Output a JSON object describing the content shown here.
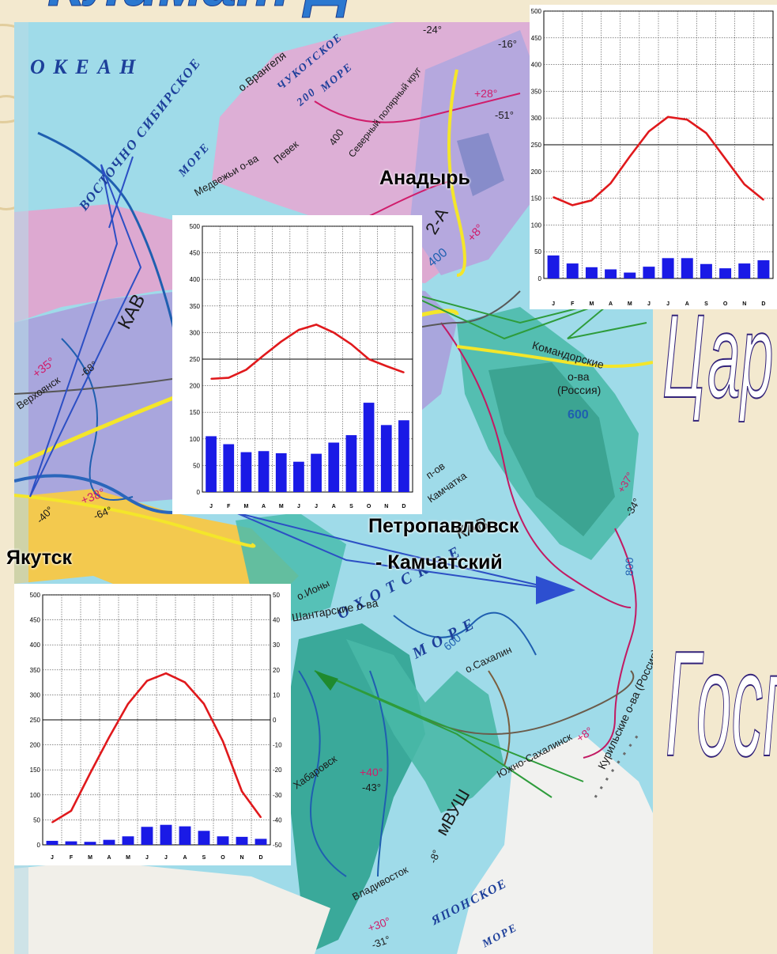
{
  "slide": {
    "top_fragment": "Климат Д",
    "right_fragment_upper": "Цар",
    "right_fragment_lower": "Госп"
  },
  "map": {
    "labels": {
      "okean": "О К Е А Н",
      "vostochno_sibirskoe": "ВОСТОЧНО СИБИРСКОЕ",
      "more": "МОРЕ",
      "chukotskoe": "ЧУКОТСКОЕ",
      "chukotskoe_more": "МОРЕ",
      "num_200": "200",
      "wrangel": "о.Врангеля",
      "medvezhyi": "Медвежьи о-ва",
      "pevek": "Певек",
      "num_400": "400",
      "polar_circle": "Северный полярный круг",
      "kav_upper": "КАВ",
      "verkhoyansk": "Верхоянск",
      "temp_plus35": "+35°",
      "temp_minus68": "-68°",
      "temp_minus24": "-24°",
      "temp_minus16": "-16°",
      "temp_plus28": "+28°",
      "temp_minus51": "-51°",
      "temp_plus8": "+8°",
      "val_400_left": "400",
      "val_2a": "2-А",
      "komandorskie": "Командорские",
      "komandorskie_2": "о-ва",
      "komandorskie_3": "(Россия)",
      "val_600": "600",
      "kamchatka_pov": "п-ов",
      "kamchatka": "Камчатка",
      "okhotskoe": "О Х О Т С К О Е",
      "okhotskoe_more": "М О Р Е",
      "ostrova_iony": "о.Ионы",
      "shantarskie": "Шантарские о-ва",
      "sakhalin": "о.Сахалин",
      "yuzhno_sakhalinsk": "Южно-Сахалинск",
      "kurilskie": "Курильские о-ва (Россия)",
      "khabarovsk": "Хабаровск",
      "mvush": "мВУШ",
      "kav_lower": "КАВ",
      "vladivostok": "Владивосток",
      "yaponskoe": "ЯПОНСКОЕ",
      "yaponskoe_more": "МОРЕ",
      "temp_plus38": "+38°",
      "temp_minus64": "-64°",
      "temp_minus40": "-40°",
      "temp_plus30": "+30°",
      "temp_minus31": "-31°",
      "temp_plus40": "+40°",
      "temp_minus43": "-43°",
      "temp_plus37": "+37°",
      "temp_minus34": "-34°",
      "temp_minus8": "-8°",
      "val_800": "800",
      "val_600_b": "600"
    }
  },
  "cities": {
    "anadyr": "Анадырь",
    "petropavlovsk_1": "Петропавловск",
    "petropavlovsk_2": "- Камчатский",
    "yakutsk": "Якутск"
  },
  "colors": {
    "precip_bar": "#1a1ae6",
    "temp_line": "#e0191c",
    "map_water": "#9fdbe9",
    "deco_outline": "#33237a"
  },
  "chart_data": [
    {
      "type": "bar",
      "chart_id": "anadyr",
      "categories": [
        "J",
        "F",
        "M",
        "A",
        "M",
        "J",
        "J",
        "A",
        "S",
        "O",
        "N",
        "D"
      ],
      "series": [
        {
          "values": [
            43,
            28,
            21,
            17,
            11,
            22,
            38,
            38,
            27,
            19,
            28,
            34
          ]
        },
        {
          "type": "line",
          "values": [
            152,
            137,
            146,
            178,
            228,
            275,
            302,
            297,
            272,
            224,
            176,
            147
          ]
        }
      ],
      "y_ticks": [
        "0",
        "50",
        "100",
        "150",
        "200",
        "250",
        "300",
        "350",
        "400",
        "450",
        "500"
      ],
      "ylim": [
        0,
        500
      ],
      "grid": true
    },
    {
      "type": "bar",
      "chart_id": "petropavlovsk",
      "categories": [
        "J",
        "F",
        "M",
        "A",
        "M",
        "J",
        "J",
        "A",
        "S",
        "O",
        "N",
        "D"
      ],
      "series": [
        {
          "values": [
            105,
            90,
            75,
            77,
            73,
            57,
            72,
            93,
            107,
            168,
            126,
            135
          ]
        },
        {
          "type": "line",
          "values": [
            213,
            215,
            230,
            257,
            283,
            305,
            315,
            300,
            278,
            250,
            237,
            225
          ]
        }
      ],
      "y_ticks": [
        "0",
        "50",
        "100",
        "150",
        "200",
        "250",
        "300",
        "350",
        "400",
        "450",
        "500"
      ],
      "ylim": [
        0,
        500
      ],
      "grid": true
    },
    {
      "type": "bar",
      "chart_id": "yakutsk",
      "categories": [
        "J",
        "F",
        "M",
        "A",
        "M",
        "J",
        "J",
        "A",
        "S",
        "O",
        "N",
        "D"
      ],
      "series": [
        {
          "values": [
            8,
            7,
            6,
            10,
            17,
            36,
            40,
            37,
            28,
            17,
            16,
            12
          ]
        },
        {
          "type": "line",
          "values": [
            45,
            68,
            143,
            215,
            282,
            328,
            343,
            325,
            282,
            207,
            107,
            55
          ]
        }
      ],
      "y_ticks": [
        "0",
        "50",
        "100",
        "150",
        "200",
        "250",
        "300",
        "350",
        "400",
        "450",
        "500"
      ],
      "y2_ticks": [
        "-50",
        "-40",
        "-30",
        "-20",
        "-10",
        "0",
        "10",
        "20",
        "30",
        "40",
        "50"
      ],
      "ylim": [
        0,
        500
      ],
      "grid": true
    }
  ]
}
